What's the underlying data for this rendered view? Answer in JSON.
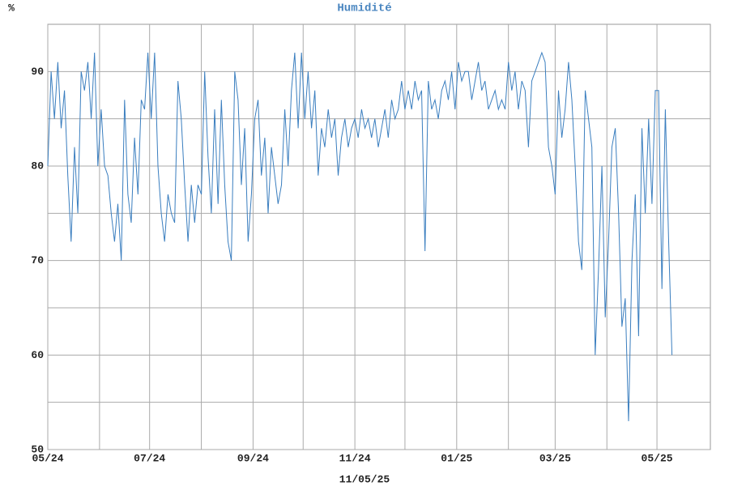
{
  "chart_data": {
    "type": "line",
    "title": "Humidité",
    "y_label": "%",
    "footer": "11/05/25",
    "color": "#3a7ebf",
    "grid": true,
    "xlim": [
      0,
      397
    ],
    "ylim": [
      50,
      95
    ],
    "xticks": [
      {
        "value": 0,
        "label": "05/24"
      },
      {
        "value": 31,
        "label": null
      },
      {
        "value": 61,
        "label": "07/24"
      },
      {
        "value": 92,
        "label": null
      },
      {
        "value": 123,
        "label": "09/24"
      },
      {
        "value": 153,
        "label": null
      },
      {
        "value": 184,
        "label": "11/24"
      },
      {
        "value": 214,
        "label": null
      },
      {
        "value": 245,
        "label": "01/25"
      },
      {
        "value": 276,
        "label": null
      },
      {
        "value": 304,
        "label": "03/25"
      },
      {
        "value": 335,
        "label": null
      },
      {
        "value": 365,
        "label": "05/25"
      }
    ],
    "yticks": [
      50,
      {
        "value": 55,
        "label": null
      },
      60,
      {
        "value": 65,
        "label": null
      },
      70,
      {
        "value": 75,
        "label": null
      },
      80,
      {
        "value": 85,
        "label": null
      },
      90
    ],
    "x": [
      0,
      2,
      4,
      6,
      8,
      10,
      12,
      14,
      16,
      18,
      20,
      22,
      24,
      26,
      28,
      30,
      32,
      34,
      36,
      38,
      40,
      42,
      44,
      46,
      48,
      50,
      52,
      54,
      56,
      58,
      60,
      62,
      64,
      66,
      68,
      70,
      72,
      74,
      76,
      78,
      80,
      82,
      84,
      86,
      88,
      90,
      92,
      94,
      96,
      98,
      100,
      102,
      104,
      106,
      108,
      110,
      112,
      114,
      116,
      118,
      120,
      122,
      124,
      126,
      128,
      130,
      132,
      134,
      136,
      138,
      140,
      142,
      144,
      146,
      148,
      150,
      152,
      154,
      156,
      158,
      160,
      162,
      164,
      166,
      168,
      170,
      172,
      174,
      176,
      178,
      180,
      182,
      184,
      186,
      188,
      190,
      192,
      194,
      196,
      198,
      200,
      202,
      204,
      206,
      208,
      210,
      212,
      214,
      216,
      218,
      220,
      222,
      224,
      226,
      228,
      230,
      232,
      234,
      236,
      238,
      240,
      242,
      244,
      246,
      248,
      250,
      252,
      254,
      256,
      258,
      260,
      262,
      264,
      266,
      268,
      270,
      272,
      274,
      276,
      278,
      280,
      282,
      284,
      286,
      288,
      290,
      292,
      294,
      296,
      298,
      300,
      302,
      304,
      306,
      308,
      310,
      312,
      314,
      316,
      318,
      320,
      322,
      324,
      326,
      328,
      330,
      332,
      334,
      336,
      338,
      340,
      342,
      344,
      346,
      348,
      350,
      352,
      354,
      356,
      358,
      360,
      362,
      364,
      366,
      368,
      370,
      372,
      374
    ],
    "values": [
      80,
      90,
      85,
      91,
      84,
      88,
      79,
      72,
      82,
      75,
      90,
      88,
      91,
      85,
      92,
      80,
      86,
      80,
      79,
      75,
      72,
      76,
      70,
      87,
      77,
      74,
      83,
      77,
      87,
      86,
      92,
      85,
      92,
      80,
      75,
      72,
      77,
      75,
      74,
      89,
      85,
      78,
      72,
      78,
      74,
      78,
      77,
      90,
      81,
      75,
      86,
      76,
      87,
      78,
      72,
      70,
      90,
      87,
      78,
      84,
      72,
      77,
      85,
      87,
      79,
      83,
      75,
      82,
      79,
      76,
      78,
      86,
      80,
      88,
      92,
      84,
      92,
      85,
      90,
      84,
      88,
      79,
      84,
      82,
      86,
      83,
      85,
      79,
      83,
      85,
      82,
      84,
      85,
      83,
      86,
      84,
      85,
      83,
      85,
      82,
      84,
      86,
      83,
      87,
      85,
      86,
      89,
      86,
      88,
      86,
      89,
      87,
      88,
      71,
      89,
      86,
      87,
      85,
      88,
      89,
      87,
      90,
      86,
      91,
      89,
      90,
      90,
      87,
      89,
      91,
      88,
      89,
      86,
      87,
      88,
      86,
      87,
      86,
      91,
      88,
      90,
      86,
      89,
      88,
      82,
      89,
      90,
      91,
      92,
      91,
      82,
      80,
      77,
      88,
      83,
      86,
      91,
      87,
      80,
      72,
      69,
      88,
      85,
      82,
      60,
      69,
      80,
      64,
      72,
      82,
      84,
      75,
      63,
      66,
      53,
      70,
      77,
      62,
      84,
      75,
      85,
      76,
      88,
      88,
      67,
      86,
      72,
      60
    ]
  }
}
